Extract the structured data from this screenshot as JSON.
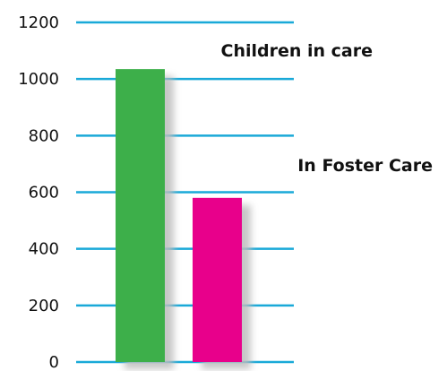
{
  "chart_data": {
    "type": "bar",
    "categories": [
      "Children in care",
      "In Foster Care"
    ],
    "values": [
      1035,
      580
    ],
    "title": "",
    "xlabel": "",
    "ylabel": "",
    "ylim": [
      0,
      1200
    ],
    "yticks": [
      0,
      200,
      400,
      600,
      800,
      1000,
      1200
    ],
    "ytick_labels": [
      "0",
      "200",
      "400",
      "600",
      "800",
      "1000",
      "1200"
    ],
    "grid": true,
    "legend": "none",
    "colors": {
      "bars": [
        "#3daf4a",
        "#e8008b"
      ],
      "grid": "#19a9d8",
      "shadow": "#bdbdbd"
    }
  }
}
